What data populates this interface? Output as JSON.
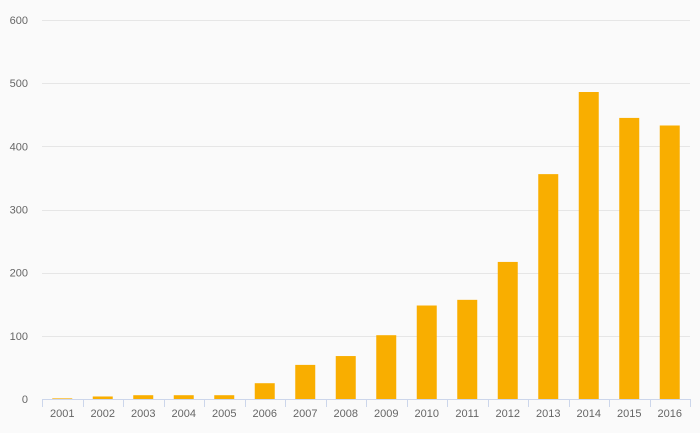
{
  "chart_data": {
    "type": "bar",
    "title": "",
    "xlabel": "",
    "ylabel": "",
    "categories": [
      "2001",
      "2002",
      "2003",
      "2004",
      "2005",
      "2006",
      "2007",
      "2008",
      "2009",
      "2010",
      "2011",
      "2012",
      "2013",
      "2014",
      "2015",
      "2016"
    ],
    "values": [
      1,
      4,
      6,
      6,
      6,
      25,
      54,
      68,
      101,
      148,
      157,
      217,
      356,
      486,
      445,
      433
    ],
    "ylim": [
      0,
      600
    ],
    "yticks": [
      0,
      100,
      200,
      300,
      400,
      500,
      600
    ],
    "grid": true,
    "legend": "none",
    "colors": {
      "bar": "#f9ae00",
      "grid": "#e6e6e6",
      "axis": "#ccd6eb",
      "text": "#666666",
      "background": "#fafafa"
    }
  }
}
